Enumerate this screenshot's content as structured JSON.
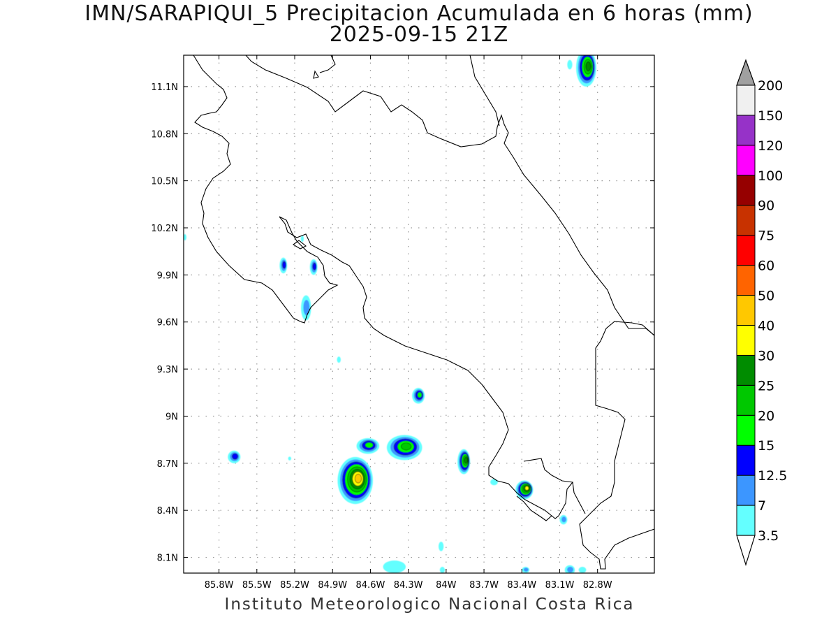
{
  "title": {
    "line1": "IMN/SARAPIQUI_5 Precipitacion Acumulada en 6 horas (mm)",
    "line2": "2025-09-15 21Z"
  },
  "footer": "Instituto Meteorologico Nacional Costa Rica",
  "map": {
    "lon_range": [
      -86.08,
      -82.35
    ],
    "lat_range": [
      8.0,
      11.3
    ],
    "lat_ticks": [
      {
        "value": 11.1,
        "label": "11.1N"
      },
      {
        "value": 10.8,
        "label": "10.8N"
      },
      {
        "value": 10.5,
        "label": "10.5N"
      },
      {
        "value": 10.2,
        "label": "10.2N"
      },
      {
        "value": 9.9,
        "label": "9.9N"
      },
      {
        "value": 9.6,
        "label": "9.6N"
      },
      {
        "value": 9.3,
        "label": "9.3N"
      },
      {
        "value": 9.0,
        "label": "9N"
      },
      {
        "value": 8.7,
        "label": "8.7N"
      },
      {
        "value": 8.4,
        "label": "8.4N"
      },
      {
        "value": 8.1,
        "label": "8.1N"
      }
    ],
    "lon_ticks": [
      {
        "value": -85.8,
        "label": "85.8W"
      },
      {
        "value": -85.5,
        "label": "85.5W"
      },
      {
        "value": -85.2,
        "label": "85.2W"
      },
      {
        "value": -84.9,
        "label": "84.9W"
      },
      {
        "value": -84.6,
        "label": "84.6W"
      },
      {
        "value": -84.3,
        "label": "84.3W"
      },
      {
        "value": -84.0,
        "label": "84W"
      },
      {
        "value": -83.7,
        "label": "83.7W"
      },
      {
        "value": -83.4,
        "label": "83.4W"
      },
      {
        "value": -83.1,
        "label": "83.1W"
      },
      {
        "value": -82.8,
        "label": "82.8W"
      }
    ],
    "grid": true,
    "precip_cells": [
      {
        "lon": -82.89,
        "lat": 11.22,
        "rx": 0.08,
        "ry": 0.12,
        "value": 25
      },
      {
        "lon": -83.02,
        "lat": 11.24,
        "rx": 0.02,
        "ry": 0.03,
        "value": 3.5
      },
      {
        "lon": -84.22,
        "lat": 9.13,
        "rx": 0.05,
        "ry": 0.05,
        "value": 15
      },
      {
        "lon": -84.62,
        "lat": 8.81,
        "rx": 0.09,
        "ry": 0.05,
        "value": 15
      },
      {
        "lon": -84.33,
        "lat": 8.8,
        "rx": 0.14,
        "ry": 0.08,
        "value": 20
      },
      {
        "lon": -83.86,
        "lat": 8.71,
        "rx": 0.05,
        "ry": 0.08,
        "value": 25
      },
      {
        "lon": -84.72,
        "lat": 8.59,
        "rx": 0.14,
        "ry": 0.15,
        "value": 40
      },
      {
        "lon": -83.38,
        "lat": 8.53,
        "rx": 0.07,
        "ry": 0.06,
        "value": 30
      },
      {
        "lon": -85.68,
        "lat": 8.74,
        "rx": 0.05,
        "ry": 0.04,
        "value": 12.5
      },
      {
        "lon": -85.29,
        "lat": 9.96,
        "rx": 0.03,
        "ry": 0.05,
        "value": 12.5
      },
      {
        "lon": -85.05,
        "lat": 9.95,
        "rx": 0.03,
        "ry": 0.05,
        "value": 12.5
      },
      {
        "lon": -85.11,
        "lat": 9.69,
        "rx": 0.04,
        "ry": 0.08,
        "value": 7
      },
      {
        "lon": -85.14,
        "lat": 10.13,
        "rx": 0.012,
        "ry": 0.02,
        "value": 3.5
      },
      {
        "lon": -86.07,
        "lat": 10.14,
        "rx": 0.012,
        "ry": 0.02,
        "value": 3.5
      },
      {
        "lon": -84.85,
        "lat": 9.36,
        "rx": 0.015,
        "ry": 0.02,
        "value": 3.5
      },
      {
        "lon": -85.24,
        "lat": 8.73,
        "rx": 0.012,
        "ry": 0.012,
        "value": 3.5
      },
      {
        "lon": -83.62,
        "lat": 8.58,
        "rx": 0.03,
        "ry": 0.02,
        "value": 3.5
      },
      {
        "lon": -83.07,
        "lat": 8.34,
        "rx": 0.03,
        "ry": 0.03,
        "value": 7
      },
      {
        "lon": -84.04,
        "lat": 8.17,
        "rx": 0.02,
        "ry": 0.03,
        "value": 3.5
      },
      {
        "lon": -84.03,
        "lat": 8.02,
        "rx": 0.02,
        "ry": 0.02,
        "value": 3.5
      },
      {
        "lon": -84.41,
        "lat": 8.04,
        "rx": 0.09,
        "ry": 0.04,
        "value": 3.5
      },
      {
        "lon": -83.37,
        "lat": 8.02,
        "rx": 0.03,
        "ry": 0.02,
        "value": 7
      },
      {
        "lon": -83.02,
        "lat": 8.02,
        "rx": 0.04,
        "ry": 0.03,
        "value": 7
      },
      {
        "lon": -82.92,
        "lat": 8.02,
        "rx": 0.03,
        "ry": 0.02,
        "value": 3.5
      }
    ]
  },
  "colorbar": {
    "levels": [
      3.5,
      7,
      12.5,
      15,
      20,
      25,
      30,
      40,
      50,
      60,
      75,
      90,
      100,
      120,
      150,
      200
    ],
    "labels": [
      "3.5",
      "7",
      "12.5",
      "15",
      "20",
      "25",
      "30",
      "40",
      "50",
      "60",
      "75",
      "90",
      "100",
      "120",
      "150",
      "200"
    ],
    "colors": [
      "#64ffff",
      "#3c96ff",
      "#0000ff",
      "#00ff00",
      "#00c800",
      "#008c00",
      "#ffff00",
      "#ffc800",
      "#ff6400",
      "#ff0000",
      "#c83200",
      "#960000",
      "#ff00ff",
      "#9632c8",
      "#f0f0f0"
    ],
    "under_color": "#ffffff",
    "over_color": "#a0a0a0"
  }
}
